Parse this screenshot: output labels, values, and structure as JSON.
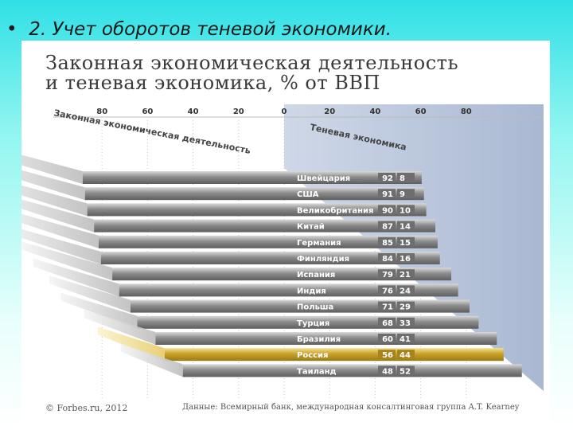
{
  "slide": {
    "bullet": "•",
    "title": "2. Учет оборотов теневой экономики."
  },
  "chart_data": {
    "type": "bar",
    "title_line1": "Законная экономическая деятельность",
    "title_line2": "и теневая экономика, % от ВВП",
    "left_series_label": "Законная экономическая деятельность",
    "right_series_label": "Теневая экономика",
    "left_ticks": [
      "80",
      "60",
      "40",
      "20",
      "0"
    ],
    "right_ticks": [
      "20",
      "40",
      "60",
      "80"
    ],
    "categories": [
      "Швейцария",
      "США",
      "Великобритания",
      "Китай",
      "Германия",
      "Финляндия",
      "Испания",
      "Индия",
      "Польша",
      "Турция",
      "Бразилия",
      "Россия",
      "Таиланд"
    ],
    "series": [
      {
        "name": "Законная экономическая деятельность",
        "values": [
          92,
          91,
          90,
          87,
          85,
          84,
          79,
          76,
          71,
          68,
          60,
          56,
          48
        ]
      },
      {
        "name": "Теневая экономика",
        "values": [
          8,
          9,
          10,
          14,
          15,
          16,
          21,
          24,
          29,
          33,
          41,
          44,
          52
        ]
      }
    ],
    "highlight": "Россия",
    "colors": {
      "bar_gray": "#8a8a8a",
      "bar_highlight": "#c9a227",
      "shadow_panel": "#b9c6dc"
    },
    "footer_source": "© Forbes.ru, 2012",
    "footer_data": "Данные: Всемирный банк, международная консалтинговая группа A.T. Kearney"
  }
}
